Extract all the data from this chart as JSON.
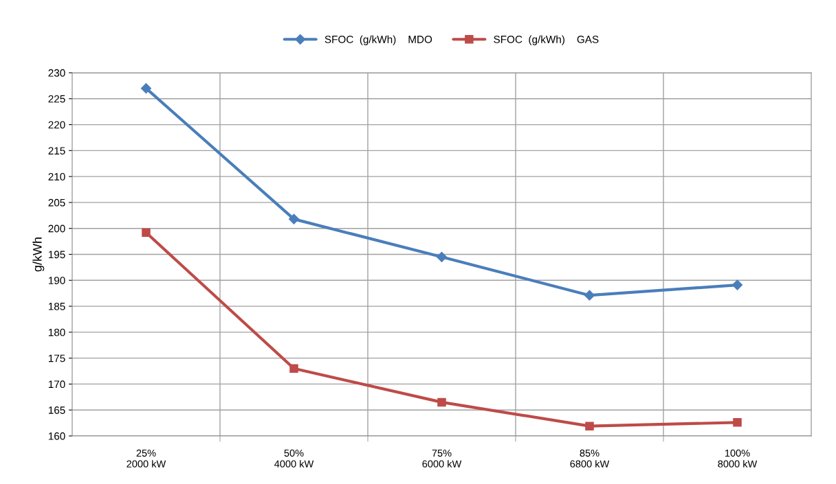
{
  "chart_data": {
    "type": "line",
    "ylabel": "g/kWh",
    "categories": [
      "25%\n2000 kW",
      "50%\n4000 kW",
      "75%\n6000 kW",
      "85%\n6800 kW",
      "100%\n8000 kW"
    ],
    "series": [
      {
        "name": "SFOC  (g/kWh)    MDO",
        "color": "#4a7ebb",
        "marker": "diamond",
        "values": [
          227.0,
          201.8,
          194.5,
          187.1,
          189.1
        ]
      },
      {
        "name": "SFOC  (g/kWh)    GAS",
        "color": "#be4b48",
        "marker": "square",
        "values": [
          199.2,
          173.0,
          166.5,
          161.9,
          162.6
        ]
      }
    ],
    "ylim": [
      160,
      230
    ],
    "yticks": [
      160,
      165,
      170,
      175,
      180,
      185,
      190,
      195,
      200,
      205,
      210,
      215,
      220,
      225,
      230
    ],
    "grid": true,
    "legend": "top",
    "line_style": "solid"
  }
}
